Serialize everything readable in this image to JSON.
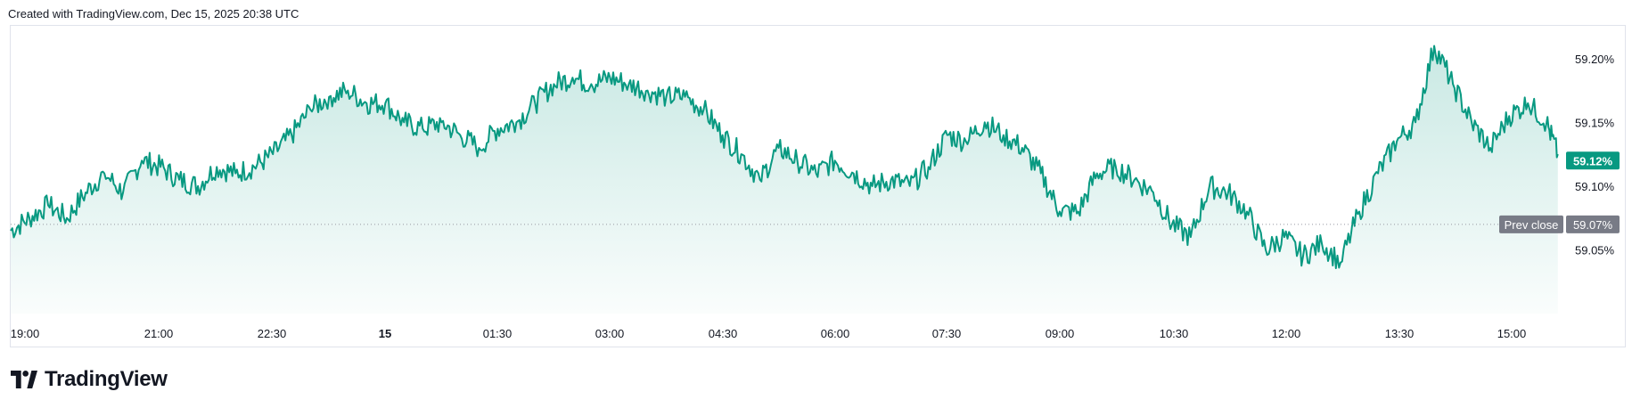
{
  "header": {
    "text": "Created with TradingView.com, Dec 15, 2025 20:38 UTC"
  },
  "brand": {
    "name": "TradingView",
    "icon": "tradingview-logo-icon"
  },
  "colors": {
    "line": "#089981",
    "prev_close_tag": "#787b86",
    "last_tag": "#089981",
    "grid": "#e0e3eb"
  },
  "chart_data": {
    "type": "area",
    "x_tick_labels": [
      "19:00",
      "21:00",
      "22:30",
      "15",
      "01:30",
      "03:00",
      "04:30",
      "06:00",
      "07:30",
      "09:00",
      "10:30",
      "12:00",
      "13:30",
      "15:00"
    ],
    "y_tick_labels": [
      "59.20%",
      "59.15%",
      "59.10%",
      "59.05%"
    ],
    "y_ticks": [
      59.2,
      59.15,
      59.1,
      59.05
    ],
    "ylim": [
      59.0,
      59.225
    ],
    "x_range_hours": [
      0,
      20.7
    ],
    "series": [
      {
        "x": [
          0,
          0.25,
          0.5,
          0.75,
          1,
          1.25,
          1.5,
          1.75,
          2,
          2.25,
          2.5,
          2.75,
          3,
          3.25,
          3.5,
          3.75,
          4,
          4.25,
          4.5,
          4.75,
          5,
          5.25,
          5.5,
          5.75,
          6,
          6.25,
          6.5,
          6.75,
          7,
          7.25,
          7.5,
          7.75,
          8,
          8.25,
          8.5,
          8.75,
          9,
          9.25,
          9.5,
          9.75,
          10,
          10.25,
          10.5,
          10.75,
          11,
          11.25,
          11.5,
          11.75,
          12,
          12.25,
          12.5,
          12.75,
          13,
          13.25,
          13.5,
          13.75,
          14,
          14.25,
          14.5,
          14.75,
          15,
          15.25,
          15.5,
          15.75,
          16,
          16.25,
          16.5,
          16.75,
          17,
          17.25,
          17.5,
          17.75,
          18,
          18.25,
          18.5,
          18.75,
          19,
          19.25,
          19.5,
          19.75,
          20,
          20.25,
          20.5,
          20.65
        ],
        "values": [
          59.065,
          59.075,
          59.085,
          59.075,
          59.095,
          59.11,
          59.095,
          59.12,
          59.115,
          59.105,
          59.1,
          59.115,
          59.11,
          59.115,
          59.125,
          59.14,
          59.16,
          59.17,
          59.175,
          59.165,
          59.165,
          59.15,
          59.145,
          59.15,
          59.14,
          59.13,
          59.145,
          59.15,
          59.165,
          59.18,
          59.185,
          59.18,
          59.185,
          59.18,
          59.175,
          59.17,
          59.17,
          59.16,
          59.14,
          59.125,
          59.105,
          59.13,
          59.12,
          59.11,
          59.12,
          59.11,
          59.1,
          59.105,
          59.1,
          59.115,
          59.14,
          59.135,
          59.15,
          59.14,
          59.13,
          59.11,
          59.08,
          59.08,
          59.11,
          59.115,
          59.105,
          59.095,
          59.07,
          59.06,
          59.1,
          59.095,
          59.08,
          59.05,
          59.06,
          59.045,
          59.055,
          59.04,
          59.08,
          59.11,
          59.135,
          59.15,
          59.21,
          59.18,
          59.15,
          59.13,
          59.155,
          59.165,
          59.15,
          59.125
        ],
        "color": "#089981"
      }
    ],
    "prev_close": {
      "label": "Prev close",
      "value": 59.07,
      "value_label": "59.07%"
    },
    "last": {
      "value": 59.12,
      "value_label": "59.12%"
    },
    "grid": false
  }
}
